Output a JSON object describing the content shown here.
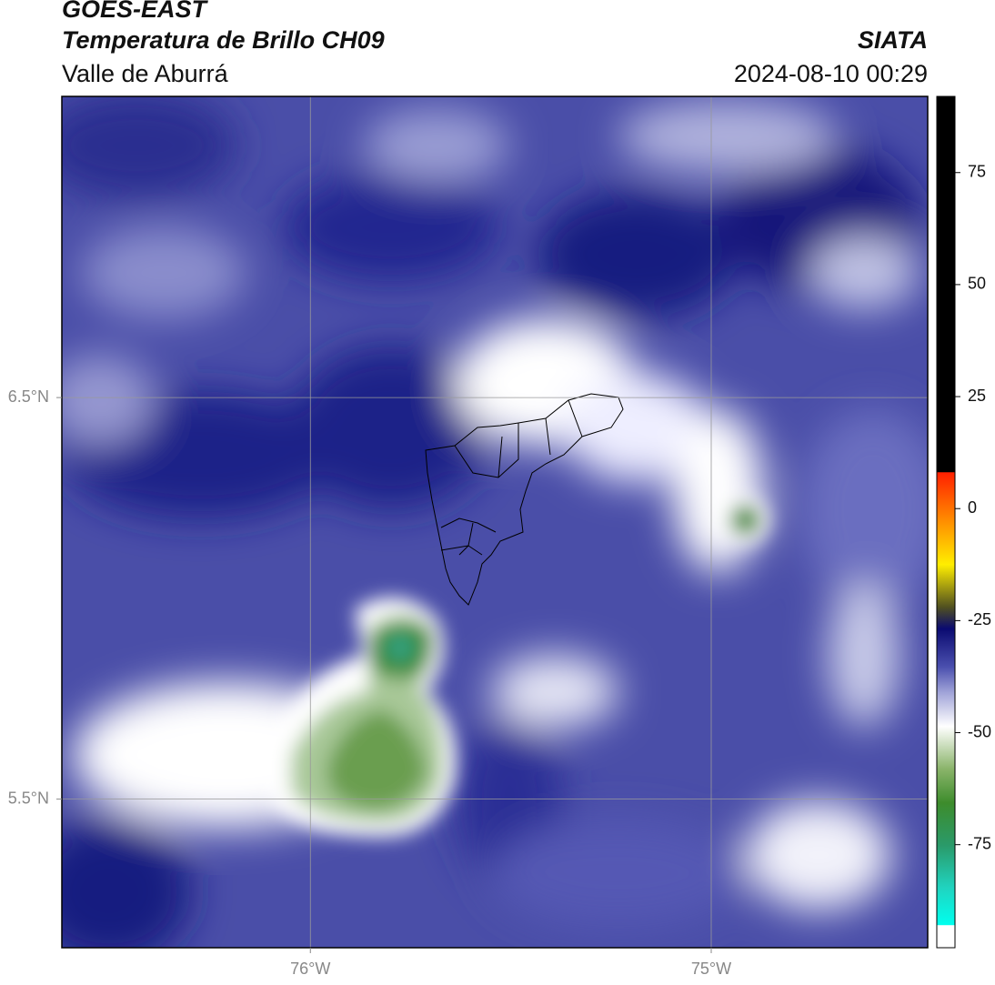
{
  "header": {
    "title": "GOES-EAST",
    "subtitle": "Temperatura de Brillo CH09",
    "region": "Valle de Aburrá",
    "source": "SIATA",
    "datetime": "2024-08-10 00:29"
  },
  "map": {
    "xlim": [
      -76.62,
      -74.46
    ],
    "ylim": [
      5.13,
      7.25
    ],
    "xticks": [
      {
        "value": -76,
        "label": "76°W"
      },
      {
        "value": -75,
        "label": "75°W"
      }
    ],
    "yticks": [
      {
        "value": 6.5,
        "label": "6.5°N"
      },
      {
        "value": 5.5,
        "label": "5.5°N"
      }
    ],
    "grid": true
  },
  "colorbar": {
    "lim": [
      -98,
      92
    ],
    "ticks": [
      75,
      50,
      25,
      0,
      -25,
      -50,
      -75
    ]
  }
}
